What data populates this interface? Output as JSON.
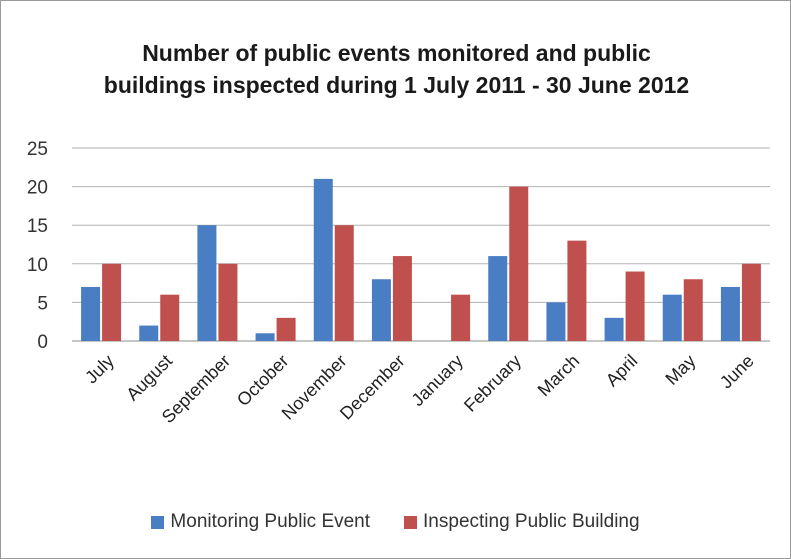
{
  "chart_data": {
    "type": "bar",
    "title": "Number of public events monitored and public buildings inspected during 1 July 2011 - 30 June 2012",
    "title_lines": [
      "Number of public events monitored and public",
      "buildings inspected during 1 July 2011 - 30 June 2012"
    ],
    "categories": [
      "July",
      "August",
      "September",
      "October",
      "November",
      "December",
      "January",
      "February",
      "March",
      "April",
      "May",
      "June"
    ],
    "series": [
      {
        "name": "Monitoring Public Event",
        "color": "#4a7ec4",
        "values": [
          7,
          2,
          15,
          1,
          21,
          8,
          0,
          11,
          5,
          3,
          6,
          7
        ]
      },
      {
        "name": "Inspecting Public Building",
        "color": "#c0504d",
        "values": [
          10,
          6,
          10,
          3,
          15,
          11,
          6,
          20,
          13,
          9,
          8,
          10
        ]
      }
    ],
    "ylim": [
      0,
      25
    ],
    "yticks": [
      "0",
      "5",
      "10",
      "15",
      "20",
      "25"
    ],
    "grid": true,
    "legend_position": "bottom"
  }
}
